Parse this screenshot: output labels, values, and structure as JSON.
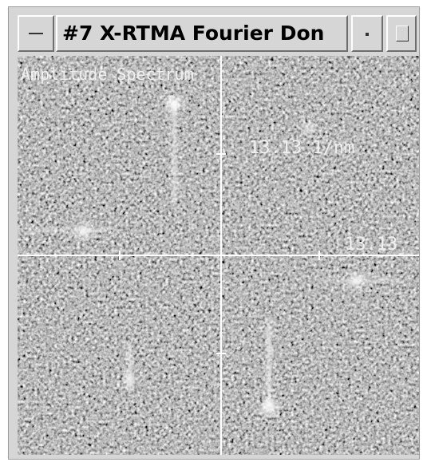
{
  "window": {
    "title": "#7 X-RTMA Fourier Don"
  },
  "image": {
    "label": "Amplitude Spectrum",
    "scale_label": "13.13 1/nm",
    "axis_label": "13.13"
  }
}
